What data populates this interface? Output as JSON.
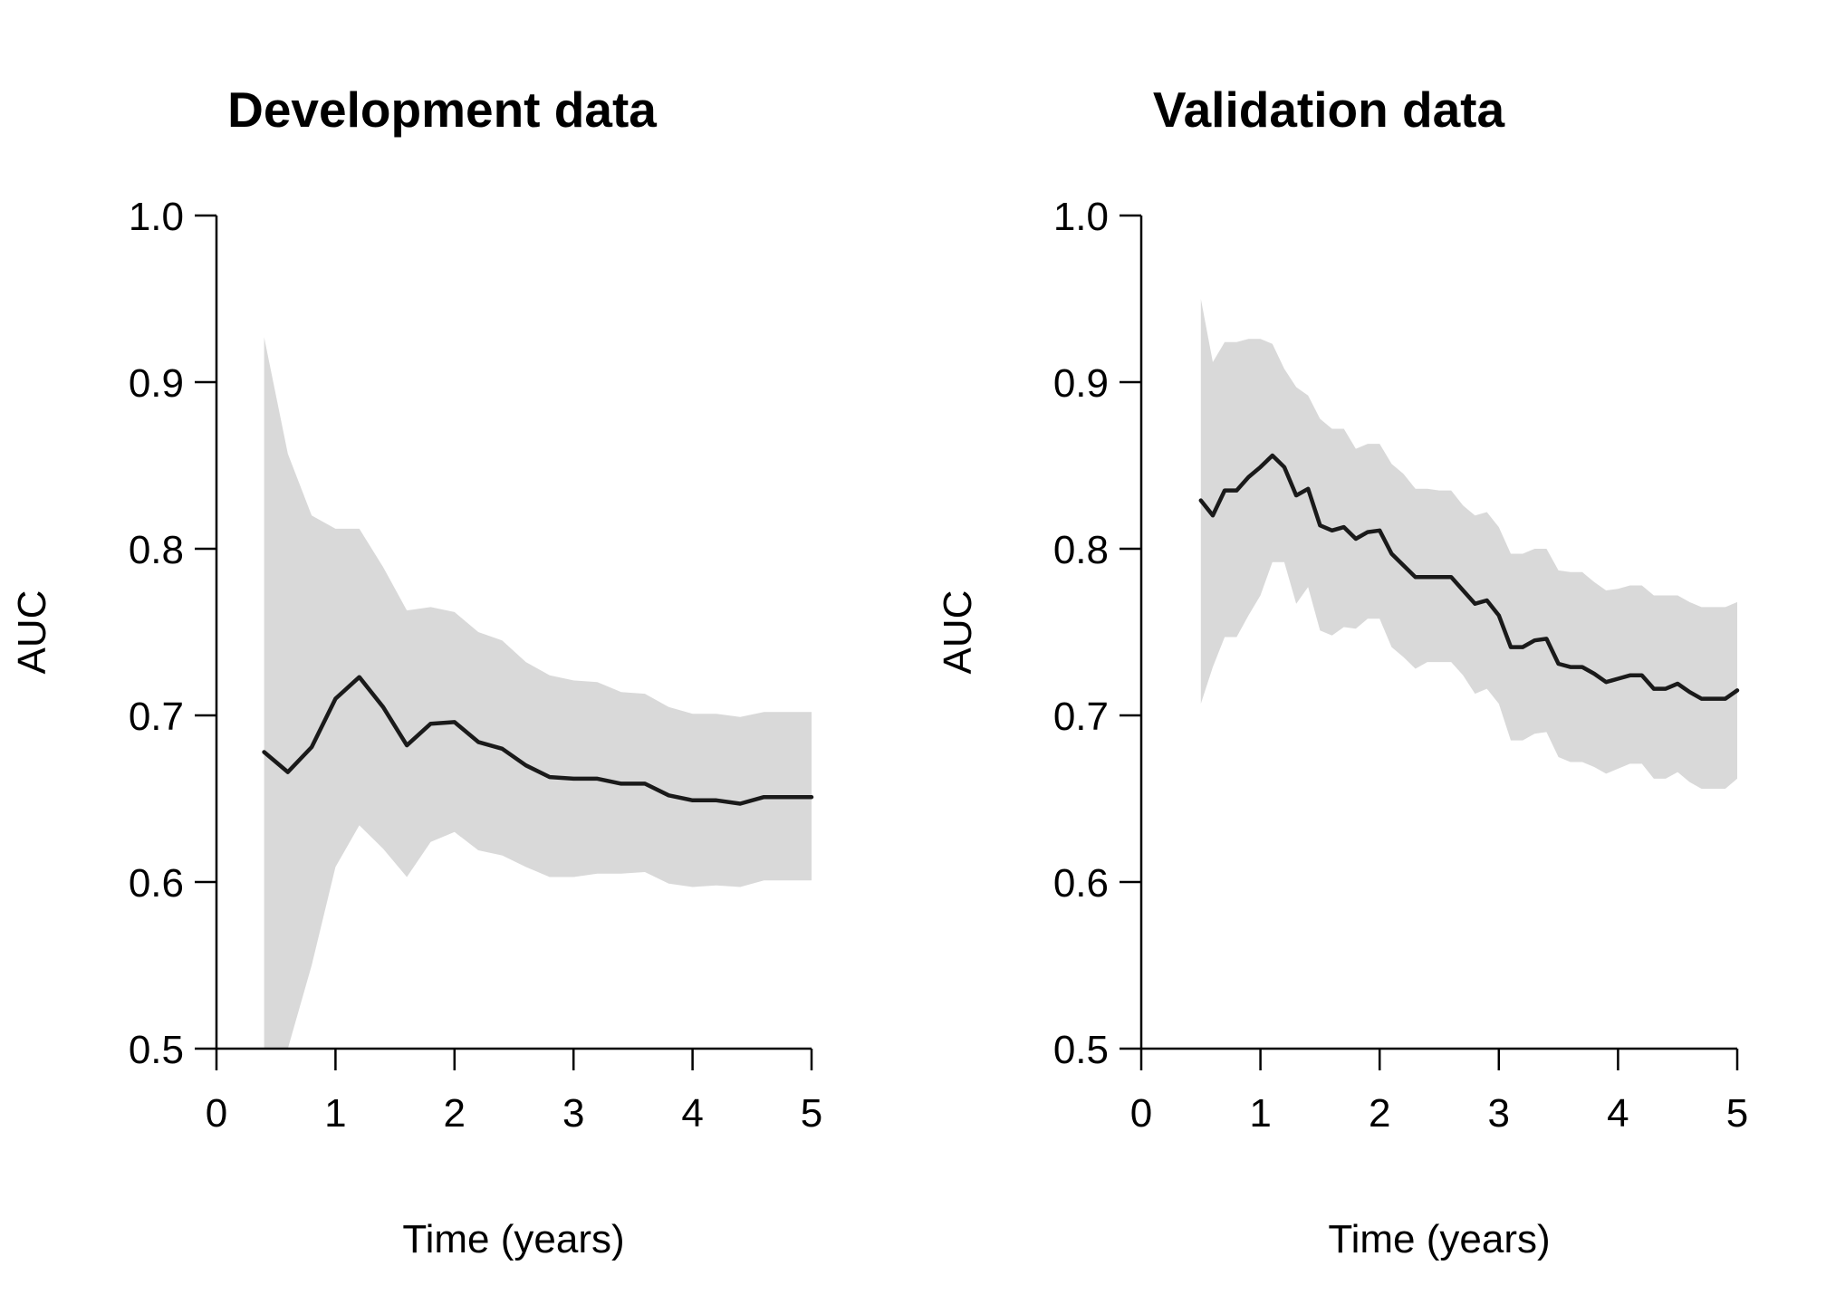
{
  "colors": {
    "band": "#d9d9d9",
    "line": "#1a1a1a",
    "axis": "#000000"
  },
  "chart_data": [
    {
      "type": "line",
      "title": "Development data",
      "xlabel": "Time (years)",
      "ylabel": "AUC",
      "xlim": [
        0,
        5
      ],
      "ylim": [
        0.5,
        1.0
      ],
      "xticks": [
        "0",
        "1",
        "2",
        "3",
        "4",
        "5"
      ],
      "yticks": [
        "0.5",
        "0.6",
        "0.7",
        "0.8",
        "0.9",
        "1.0"
      ],
      "grid": false,
      "series": [
        {
          "name": "AUC",
          "x": [
            0.4,
            0.6,
            0.8,
            1.0,
            1.2,
            1.4,
            1.6,
            1.8,
            2.0,
            2.2,
            2.4,
            2.6,
            2.8,
            3.0,
            3.2,
            3.4,
            3.6,
            3.8,
            4.0,
            4.2,
            4.4,
            4.6,
            4.8,
            5.0
          ],
          "y": [
            0.678,
            0.666,
            0.681,
            0.71,
            0.723,
            0.705,
            0.682,
            0.695,
            0.696,
            0.684,
            0.68,
            0.67,
            0.663,
            0.662,
            0.662,
            0.659,
            0.659,
            0.652,
            0.649,
            0.649,
            0.647,
            0.651,
            0.651,
            0.651
          ],
          "lower": [
            0.5,
            0.5,
            0.55,
            0.609,
            0.634,
            0.62,
            0.603,
            0.624,
            0.63,
            0.619,
            0.616,
            0.609,
            0.603,
            0.603,
            0.605,
            0.605,
            0.606,
            0.599,
            0.597,
            0.598,
            0.597,
            0.601,
            0.601,
            0.601
          ],
          "upper": [
            0.927,
            0.857,
            0.82,
            0.812,
            0.812,
            0.789,
            0.763,
            0.765,
            0.762,
            0.75,
            0.745,
            0.732,
            0.724,
            0.721,
            0.72,
            0.714,
            0.713,
            0.705,
            0.701,
            0.701,
            0.699,
            0.702,
            0.702,
            0.702
          ]
        }
      ]
    },
    {
      "type": "line",
      "title": "Validation data",
      "xlabel": "Time (years)",
      "ylabel": "AUC",
      "xlim": [
        0,
        5
      ],
      "ylim": [
        0.5,
        1.0
      ],
      "xticks": [
        "0",
        "1",
        "2",
        "3",
        "4",
        "5"
      ],
      "yticks": [
        "0.5",
        "0.6",
        "0.7",
        "0.8",
        "0.9",
        "1.0"
      ],
      "grid": false,
      "series": [
        {
          "name": "AUC",
          "x": [
            0.5,
            0.6,
            0.7,
            0.8,
            0.9,
            1.0,
            1.1,
            1.2,
            1.3,
            1.4,
            1.5,
            1.6,
            1.7,
            1.8,
            1.9,
            2.0,
            2.1,
            2.2,
            2.3,
            2.4,
            2.5,
            2.6,
            2.7,
            2.8,
            2.9,
            3.0,
            3.1,
            3.2,
            3.3,
            3.4,
            3.5,
            3.6,
            3.7,
            3.8,
            3.9,
            4.0,
            4.1,
            4.2,
            4.3,
            4.4,
            4.5,
            4.6,
            4.7,
            4.8,
            4.9,
            5.0
          ],
          "y": [
            0.829,
            0.82,
            0.835,
            0.835,
            0.843,
            0.849,
            0.856,
            0.849,
            0.832,
            0.836,
            0.814,
            0.811,
            0.813,
            0.806,
            0.81,
            0.811,
            0.797,
            0.79,
            0.783,
            0.783,
            0.783,
            0.783,
            0.775,
            0.767,
            0.769,
            0.76,
            0.741,
            0.741,
            0.745,
            0.746,
            0.731,
            0.729,
            0.729,
            0.725,
            0.72,
            0.722,
            0.724,
            0.724,
            0.716,
            0.716,
            0.719,
            0.714,
            0.71,
            0.71,
            0.71,
            0.715
          ],
          "lower": [
            0.707,
            0.729,
            0.747,
            0.747,
            0.76,
            0.772,
            0.792,
            0.792,
            0.767,
            0.777,
            0.751,
            0.748,
            0.753,
            0.752,
            0.758,
            0.758,
            0.741,
            0.735,
            0.728,
            0.732,
            0.732,
            0.732,
            0.724,
            0.713,
            0.716,
            0.707,
            0.685,
            0.685,
            0.689,
            0.69,
            0.675,
            0.672,
            0.672,
            0.669,
            0.665,
            0.668,
            0.671,
            0.671,
            0.662,
            0.662,
            0.666,
            0.66,
            0.656,
            0.656,
            0.656,
            0.662
          ],
          "upper": [
            0.95,
            0.912,
            0.924,
            0.924,
            0.926,
            0.926,
            0.923,
            0.908,
            0.897,
            0.892,
            0.878,
            0.872,
            0.872,
            0.86,
            0.863,
            0.863,
            0.851,
            0.845,
            0.836,
            0.836,
            0.835,
            0.835,
            0.826,
            0.82,
            0.822,
            0.813,
            0.797,
            0.797,
            0.8,
            0.8,
            0.787,
            0.786,
            0.786,
            0.78,
            0.775,
            0.776,
            0.778,
            0.778,
            0.772,
            0.772,
            0.772,
            0.768,
            0.765,
            0.765,
            0.765,
            0.768
          ]
        }
      ]
    }
  ]
}
